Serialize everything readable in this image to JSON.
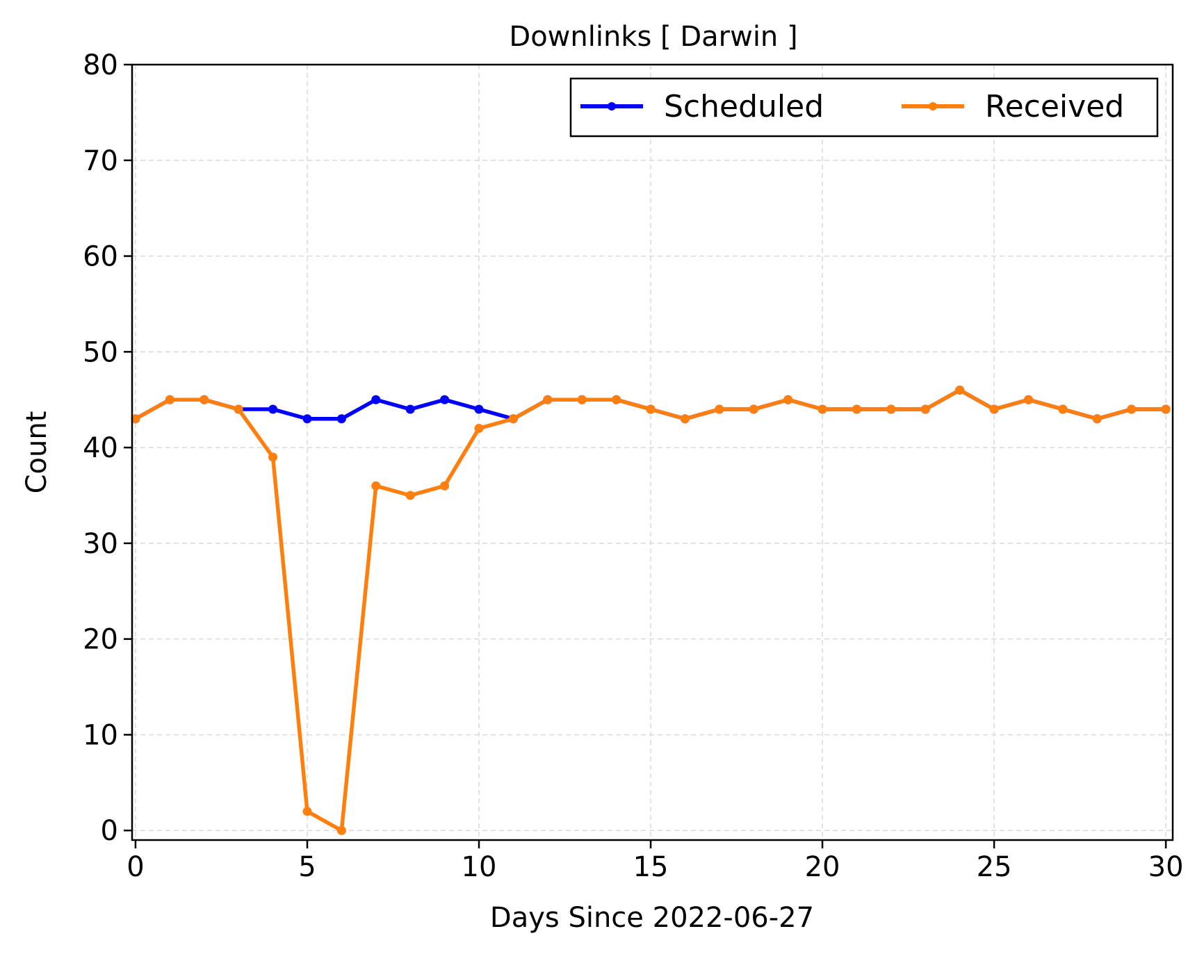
{
  "chart_data": {
    "type": "line",
    "title": "Downlinks [ Darwin ]",
    "xlabel": "Days Since 2022-06-27",
    "ylabel": "Count",
    "xlim": [
      -0.1,
      30.2
    ],
    "ylim": [
      -1,
      80
    ],
    "xticks": [
      0,
      5,
      10,
      15,
      20,
      25,
      30
    ],
    "yticks": [
      0,
      10,
      20,
      30,
      40,
      50,
      60,
      70,
      80
    ],
    "grid": true,
    "legend": "top-right",
    "x": [
      0,
      1,
      2,
      3,
      4,
      5,
      6,
      7,
      8,
      9,
      10,
      11,
      12,
      13,
      14,
      15,
      16,
      17,
      18,
      19,
      20,
      21,
      22,
      23,
      24,
      25,
      26,
      27,
      28,
      29,
      30
    ],
    "series": [
      {
        "name": "Scheduled",
        "color": "#0000ff",
        "values": [
          43,
          45,
          45,
          44,
          44,
          43,
          43,
          45,
          44,
          45,
          44,
          43,
          45,
          45,
          45,
          44,
          43,
          44,
          44,
          45,
          44,
          44,
          44,
          44,
          46,
          44,
          45,
          44,
          43,
          44,
          44
        ]
      },
      {
        "name": "Received",
        "color": "#ff7f0e",
        "values": [
          43,
          45,
          45,
          44,
          39,
          2,
          0,
          36,
          35,
          36,
          42,
          43,
          45,
          45,
          45,
          44,
          43,
          44,
          44,
          45,
          44,
          44,
          44,
          44,
          46,
          44,
          45,
          44,
          43,
          44,
          44
        ]
      }
    ]
  }
}
